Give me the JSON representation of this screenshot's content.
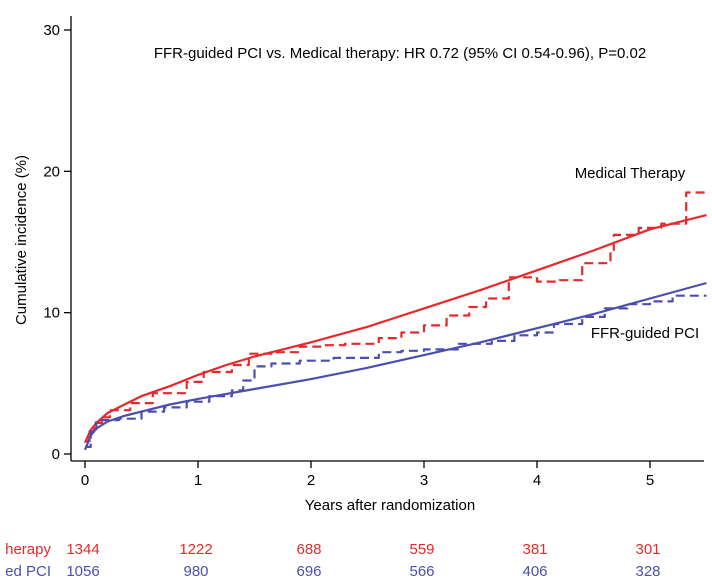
{
  "chart_data": {
    "type": "line",
    "annotation": "FFR-guided PCI vs. Medical therapy: HR 0.72 (95% CI 0.54-0.96), P=0.02",
    "xlabel": "Years after randomization",
    "ylabel": "Cumulative incidence (%)",
    "xlim": [
      0,
      5.5
    ],
    "ylim": [
      0,
      30
    ],
    "x_ticks": [
      0,
      1,
      2,
      3,
      4,
      5
    ],
    "y_ticks": [
      0,
      10,
      20,
      30
    ],
    "grid": false,
    "colors": {
      "medical": "#e8292b",
      "ffr": "#4a4fb0"
    },
    "series": [
      {
        "name": "Medical Therapy",
        "key": "medical",
        "style": "solid",
        "points": [
          [
            0,
            0.8
          ],
          [
            0.05,
            1.7
          ],
          [
            0.1,
            2.2
          ],
          [
            0.2,
            2.9
          ],
          [
            0.35,
            3.5
          ],
          [
            0.5,
            4.1
          ],
          [
            0.75,
            4.8
          ],
          [
            1.0,
            5.6
          ],
          [
            1.25,
            6.3
          ],
          [
            1.5,
            6.9
          ],
          [
            1.75,
            7.4
          ],
          [
            2.0,
            7.9
          ],
          [
            2.5,
            9.0
          ],
          [
            3.0,
            10.3
          ],
          [
            3.5,
            11.6
          ],
          [
            4.0,
            13.0
          ],
          [
            4.5,
            14.4
          ],
          [
            5.0,
            15.9
          ],
          [
            5.5,
            16.9
          ]
        ]
      },
      {
        "name": "Medical Therapy",
        "key": "medical",
        "style": "dashed",
        "points": [
          [
            0,
            0.9
          ],
          [
            0.04,
            1.6
          ],
          [
            0.08,
            2.2
          ],
          [
            0.15,
            2.6
          ],
          [
            0.22,
            3.1
          ],
          [
            0.4,
            3.6
          ],
          [
            0.6,
            4.3
          ],
          [
            0.9,
            5.1
          ],
          [
            1.05,
            5.8
          ],
          [
            1.3,
            6.3
          ],
          [
            1.45,
            7.1
          ],
          [
            1.7,
            7.2
          ],
          [
            1.9,
            7.6
          ],
          [
            2.1,
            7.7
          ],
          [
            2.3,
            7.8
          ],
          [
            2.6,
            8.2
          ],
          [
            2.8,
            8.6
          ],
          [
            3.0,
            9.1
          ],
          [
            3.2,
            9.8
          ],
          [
            3.4,
            10.4
          ],
          [
            3.55,
            11.0
          ],
          [
            3.75,
            12.5
          ],
          [
            4.0,
            12.2
          ],
          [
            4.2,
            12.3
          ],
          [
            4.4,
            13.5
          ],
          [
            4.65,
            14.3
          ],
          [
            4.68,
            15.5
          ],
          [
            4.9,
            16.0
          ],
          [
            5.1,
            16.3
          ],
          [
            5.32,
            16.3
          ],
          [
            5.32,
            18.5
          ],
          [
            5.5,
            18.5
          ]
        ]
      },
      {
        "name": "FFR-guided PCI",
        "key": "ffr",
        "style": "solid",
        "points": [
          [
            0,
            0.3
          ],
          [
            0.05,
            1.3
          ],
          [
            0.1,
            1.8
          ],
          [
            0.2,
            2.3
          ],
          [
            0.35,
            2.7
          ],
          [
            0.5,
            3.0
          ],
          [
            0.75,
            3.5
          ],
          [
            1.0,
            3.9
          ],
          [
            1.5,
            4.6
          ],
          [
            2.0,
            5.3
          ],
          [
            2.5,
            6.1
          ],
          [
            3.0,
            7.0
          ],
          [
            3.5,
            7.9
          ],
          [
            4.0,
            8.9
          ],
          [
            4.5,
            9.9
          ],
          [
            5.0,
            11.0
          ],
          [
            5.5,
            12.1
          ]
        ]
      },
      {
        "name": "FFR-guided PCI",
        "key": "ffr",
        "style": "dashed",
        "points": [
          [
            0,
            0.5
          ],
          [
            0.05,
            1.6
          ],
          [
            0.1,
            2.4
          ],
          [
            0.3,
            2.5
          ],
          [
            0.5,
            3.0
          ],
          [
            0.7,
            3.3
          ],
          [
            0.9,
            3.7
          ],
          [
            1.1,
            4.1
          ],
          [
            1.3,
            4.5
          ],
          [
            1.4,
            5.2
          ],
          [
            1.5,
            6.2
          ],
          [
            1.65,
            6.4
          ],
          [
            1.9,
            6.6
          ],
          [
            2.2,
            6.8
          ],
          [
            2.4,
            6.8
          ],
          [
            2.6,
            7.2
          ],
          [
            2.8,
            7.3
          ],
          [
            3.0,
            7.4
          ],
          [
            3.3,
            7.8
          ],
          [
            3.6,
            8.0
          ],
          [
            3.8,
            8.4
          ],
          [
            4.0,
            8.6
          ],
          [
            4.15,
            9.2
          ],
          [
            4.4,
            9.7
          ],
          [
            4.6,
            10.3
          ],
          [
            4.8,
            10.6
          ],
          [
            5.0,
            10.8
          ],
          [
            5.2,
            11.2
          ],
          [
            5.5,
            11.2
          ]
        ]
      }
    ],
    "labels": [
      {
        "text": "Medical Therapy",
        "key": "medical"
      },
      {
        "text": "FFR-guided PCI",
        "key": "ffr"
      }
    ],
    "at_risk": {
      "times": [
        0,
        1,
        2,
        3,
        4,
        5
      ],
      "rows": [
        {
          "label": "herapy",
          "key": "medical",
          "values": [
            1344,
            1222,
            688,
            559,
            381,
            301
          ]
        },
        {
          "label": "ed PCI",
          "key": "ffr",
          "values": [
            1056,
            980,
            696,
            566,
            406,
            328
          ]
        }
      ],
      "corner_mark": ":"
    }
  }
}
